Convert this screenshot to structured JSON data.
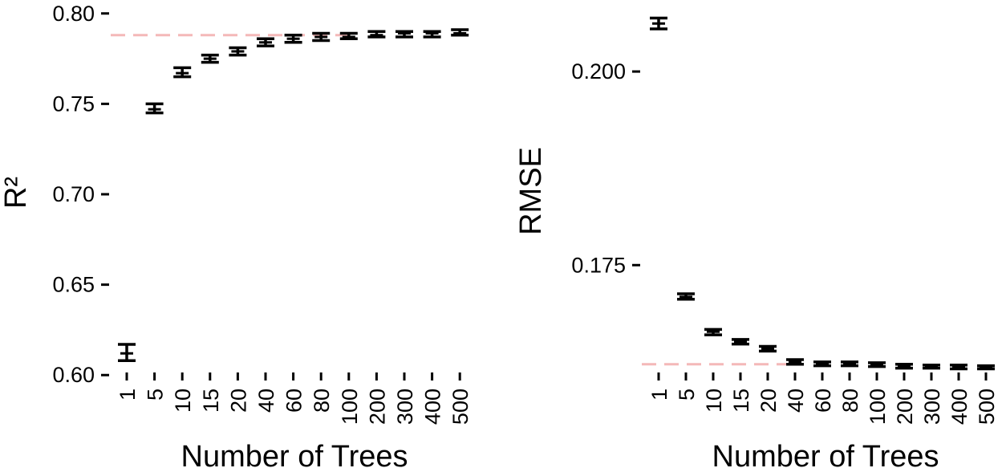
{
  "chart_data": [
    {
      "type": "errorbar",
      "xlabel": "Number of Trees",
      "ylabel": "R²",
      "categories": [
        "1",
        "5",
        "10",
        "15",
        "20",
        "40",
        "60",
        "80",
        "100",
        "200",
        "300",
        "400",
        "500"
      ],
      "yticks": [
        "0.60",
        "0.65",
        "0.70",
        "0.75",
        "0.80"
      ],
      "ylim": [
        0.597,
        0.803
      ],
      "reference_line": 0.788,
      "reference_color": "#f4b8b8",
      "series": [
        {
          "mean": [
            0.612,
            0.747,
            0.767,
            0.775,
            0.779,
            0.784,
            0.786,
            0.787,
            0.787,
            0.788,
            0.789,
            0.789,
            0.789
          ],
          "low": [
            0.608,
            0.745,
            0.765,
            0.773,
            0.777,
            0.782,
            0.784,
            0.785,
            0.786,
            0.787,
            0.787,
            0.787,
            0.788
          ],
          "high": [
            0.617,
            0.75,
            0.77,
            0.777,
            0.781,
            0.786,
            0.788,
            0.789,
            0.789,
            0.79,
            0.79,
            0.79,
            0.791
          ]
        }
      ],
      "grid": false
    },
    {
      "type": "errorbar",
      "xlabel": "Number of Trees",
      "ylabel": "RMSE",
      "categories": [
        "1",
        "5",
        "10",
        "15",
        "20",
        "40",
        "60",
        "80",
        "100",
        "200",
        "300",
        "400",
        "500"
      ],
      "yticks": [
        "0.175",
        "0.200"
      ],
      "ylim": [
        0.1601,
        0.2082
      ],
      "reference_line": 0.1622,
      "reference_color": "#f4b8b8",
      "series": [
        {
          "mean": [
            0.2062,
            0.1709,
            0.1664,
            0.1651,
            0.1642,
            0.1625,
            0.1623,
            0.1622,
            0.1621,
            0.1619,
            0.1619,
            0.1618,
            0.1618
          ],
          "low": [
            0.2055,
            0.1706,
            0.166,
            0.1648,
            0.1639,
            0.1622,
            0.162,
            0.162,
            0.1619,
            0.1617,
            0.1617,
            0.1616,
            0.1616
          ],
          "high": [
            0.2069,
            0.1713,
            0.1667,
            0.1654,
            0.1645,
            0.1628,
            0.1625,
            0.1625,
            0.1624,
            0.1622,
            0.1621,
            0.1621,
            0.162
          ]
        }
      ],
      "grid": false
    }
  ]
}
